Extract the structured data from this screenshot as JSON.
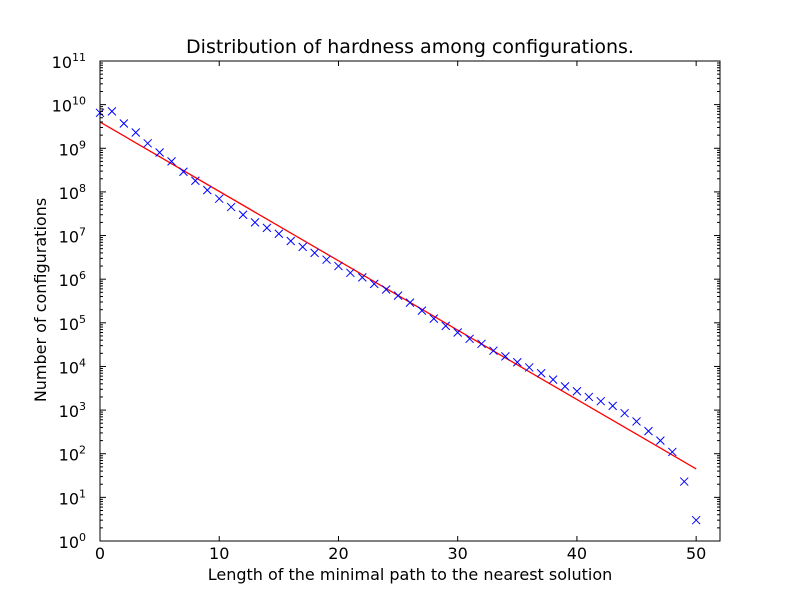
{
  "chart_data": {
    "type": "scatter",
    "title": "Distribution of hardness among configurations.",
    "xlabel": "Length of the minimal path to the nearest solution",
    "ylabel": "Number of configurations",
    "xlim": [
      0,
      52
    ],
    "ylim": [
      1,
      100000000000
    ],
    "yscale": "log",
    "grid": false,
    "x_ticks": [
      0,
      10,
      20,
      30,
      40,
      50
    ],
    "x_tick_labels": [
      "0",
      "10",
      "20",
      "30",
      "40",
      "50"
    ],
    "y_ticks": [
      1,
      10,
      100,
      1000,
      10000,
      100000,
      1000000,
      10000000,
      100000000,
      1000000000,
      10000000000,
      100000000000
    ],
    "y_tick_labels": [
      {
        "base": "10",
        "exp": "0"
      },
      {
        "base": "10",
        "exp": "1"
      },
      {
        "base": "10",
        "exp": "2"
      },
      {
        "base": "10",
        "exp": "3"
      },
      {
        "base": "10",
        "exp": "4"
      },
      {
        "base": "10",
        "exp": "5"
      },
      {
        "base": "10",
        "exp": "6"
      },
      {
        "base": "10",
        "exp": "7"
      },
      {
        "base": "10",
        "exp": "8"
      },
      {
        "base": "10",
        "exp": "9"
      },
      {
        "base": "10",
        "exp": "10"
      },
      {
        "base": "10",
        "exp": "11"
      }
    ],
    "series": [
      {
        "marker": "x",
        "color": "#0000ff",
        "x": [
          0,
          1,
          2,
          3,
          4,
          5,
          6,
          7,
          8,
          9,
          10,
          11,
          12,
          13,
          14,
          15,
          16,
          17,
          18,
          19,
          20,
          21,
          22,
          23,
          24,
          25,
          26,
          27,
          28,
          29,
          30,
          31,
          32,
          33,
          34,
          35,
          36,
          37,
          38,
          39,
          40,
          41,
          42,
          43,
          44,
          45,
          46,
          47,
          48,
          49,
          50
        ],
        "y": [
          6500000000,
          7000000000,
          3700000000,
          2300000000,
          1300000000,
          800000000,
          500000000,
          290000000,
          180000000,
          110000000,
          70000000,
          45000000,
          30000000,
          20000000,
          15000000,
          11000000,
          7500000,
          5500000,
          4000000,
          2800000,
          2000000,
          1400000,
          1100000,
          780000,
          580000,
          420000,
          290000,
          190000,
          125000,
          85000,
          60000,
          43000,
          33000,
          23000,
          17000,
          12500,
          9500,
          7000,
          5000,
          3500,
          2700,
          2000,
          1600,
          1250,
          850,
          550,
          330,
          200,
          110,
          23,
          3
        ]
      },
      {
        "type": "line",
        "color": "#ff0000",
        "x": [
          0,
          50
        ],
        "y": [
          4000000000,
          45
        ]
      }
    ]
  }
}
